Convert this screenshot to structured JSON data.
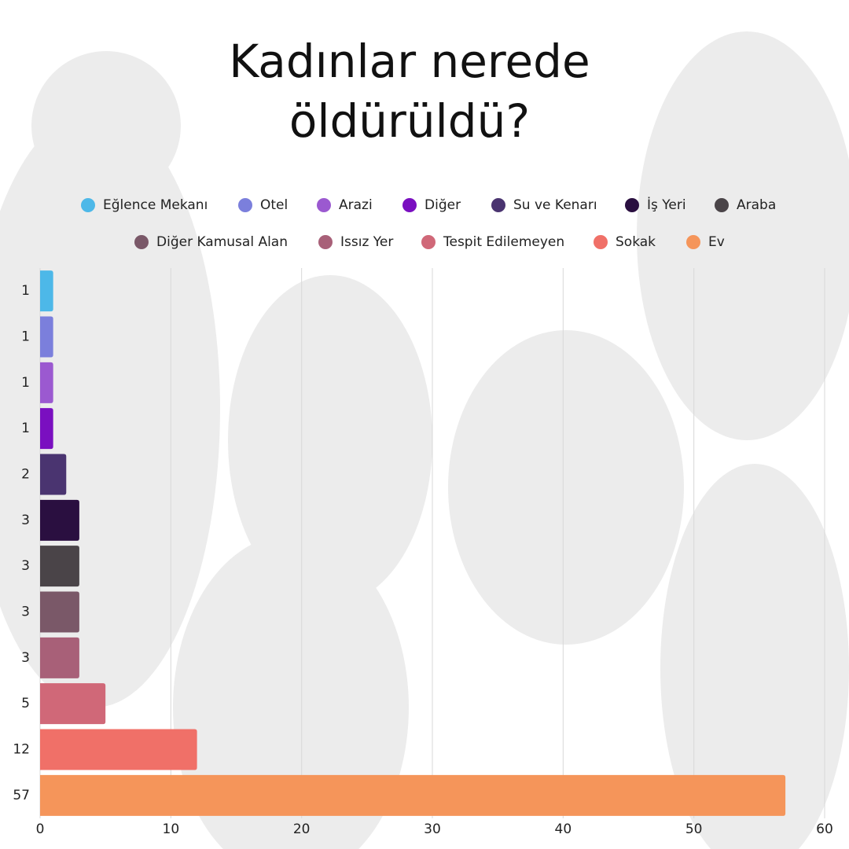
{
  "chart_data": {
    "type": "bar",
    "orientation": "horizontal",
    "title": "Kadınlar nerede öldürüldü?",
    "categories": [
      "Eğlence Mekanı",
      "Otel",
      "Arazi",
      "Diğer",
      "Su ve Kenarı",
      "İş Yeri",
      "Araba",
      "Diğer Kamusal Alan",
      "Issız Yer",
      "Tespit Edilemeyen",
      "Sokak",
      "Ev"
    ],
    "values": [
      1,
      1,
      1,
      1,
      2,
      3,
      3,
      3,
      3,
      5,
      12,
      57
    ],
    "colors": [
      "#4db8e8",
      "#7b7fdc",
      "#9b59d0",
      "#7a0fc0",
      "#4a3470",
      "#2a0f40",
      "#4a4448",
      "#7a5868",
      "#a86078",
      "#d06878",
      "#f07068",
      "#f5955a"
    ],
    "xlim": [
      0,
      60
    ],
    "xticks": [
      0,
      10,
      20,
      30,
      40,
      50,
      60
    ],
    "grid": true
  }
}
